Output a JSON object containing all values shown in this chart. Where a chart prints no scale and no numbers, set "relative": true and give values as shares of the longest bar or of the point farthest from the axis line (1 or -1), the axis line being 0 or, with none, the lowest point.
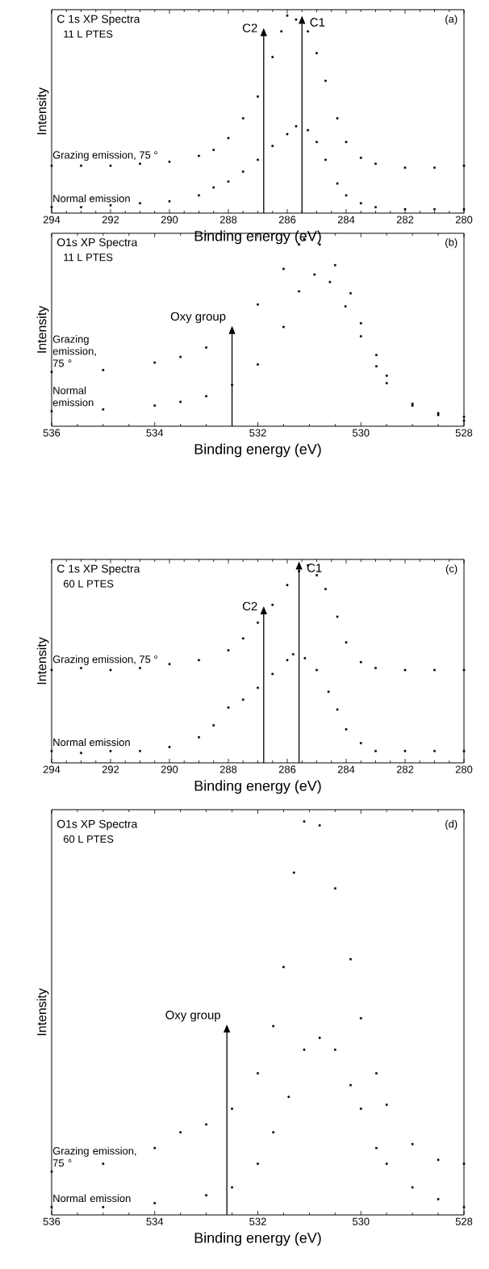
{
  "chart_data": [
    {
      "type": "scatter",
      "title": "C 1s XP Spectra",
      "subtitle": "11 L PTES",
      "xlabel": "Binding energy (eV)",
      "ylabel": "Intensity",
      "annotations": [
        "(a)"
      ],
      "relative": true,
      "marker": "square",
      "xlim": [
        294,
        280
      ],
      "xticks": [
        294,
        292,
        290,
        288,
        286,
        284,
        282,
        280
      ],
      "ref_lines": [
        {
          "axis": "x",
          "value": 286.8,
          "label": "C2"
        },
        {
          "axis": "x",
          "value": 285.5,
          "label": "C1"
        }
      ],
      "series": [
        {
          "name": "Grazing emission, 75 °",
          "color": "#000000",
          "x": [
            294,
            293,
            292,
            291,
            290,
            289,
            288.5,
            288,
            287.5,
            287,
            286.5,
            286.2,
            286,
            285.7,
            285.3,
            285,
            284.7,
            284.3,
            284,
            283.5,
            283,
            282,
            281,
            280
          ],
          "values": [
            0.24,
            0.24,
            0.24,
            0.25,
            0.26,
            0.29,
            0.32,
            0.38,
            0.48,
            0.59,
            0.79,
            0.92,
            1.0,
            0.98,
            0.92,
            0.81,
            0.67,
            0.48,
            0.36,
            0.28,
            0.25,
            0.23,
            0.23,
            0.24
          ]
        },
        {
          "name": "Normal emission",
          "color": "#000000",
          "x": [
            294,
            293,
            292,
            291,
            290,
            289,
            288.5,
            288,
            287.5,
            287,
            286.5,
            286,
            285.7,
            285.3,
            285,
            284.7,
            284.3,
            284,
            283.5,
            283,
            282,
            281,
            280
          ],
          "values": [
            0.03,
            0.03,
            0.04,
            0.05,
            0.06,
            0.09,
            0.13,
            0.16,
            0.21,
            0.27,
            0.34,
            0.4,
            0.44,
            0.42,
            0.36,
            0.27,
            0.15,
            0.09,
            0.05,
            0.03,
            0.02,
            0.02,
            0.02
          ]
        }
      ]
    },
    {
      "type": "scatter",
      "title": "O1s XP Spectra",
      "subtitle": "11 L PTES",
      "xlabel": "Binding energy (eV)",
      "ylabel": "Intensity",
      "annotations": [
        "(b)"
      ],
      "relative": true,
      "marker": "square",
      "xlim": [
        536,
        528
      ],
      "xticks": [
        536,
        534,
        532,
        530,
        528
      ],
      "ref_lines": [
        {
          "axis": "x",
          "value": 532.5,
          "label": "Oxy group"
        }
      ],
      "series": [
        {
          "name": "Grazing emission, 75 °",
          "color": "#000000",
          "x": [
            536,
            535,
            534,
            533.5,
            533,
            532.5,
            532,
            531.5,
            531.2,
            531.1,
            530.8,
            530.5,
            530.2,
            530,
            529.7,
            529.5,
            529,
            528.5,
            528
          ],
          "values": [
            0.29,
            0.3,
            0.34,
            0.37,
            0.42,
            0.51,
            0.65,
            0.84,
            0.97,
            1.0,
            0.97,
            0.86,
            0.71,
            0.55,
            0.38,
            0.27,
            0.12,
            0.07,
            0.05
          ]
        },
        {
          "name": "Normal emission",
          "color": "#000000",
          "x": [
            536,
            535,
            534,
            533.5,
            533,
            532.5,
            532,
            531.5,
            531.2,
            530.9,
            530.6,
            530.3,
            530,
            529.7,
            529.5,
            529,
            528.5,
            528
          ],
          "values": [
            0.08,
            0.09,
            0.11,
            0.13,
            0.16,
            0.22,
            0.33,
            0.53,
            0.72,
            0.81,
            0.77,
            0.64,
            0.48,
            0.32,
            0.23,
            0.11,
            0.06,
            0.03
          ]
        }
      ]
    },
    {
      "type": "scatter",
      "title": "C 1s XP Spectra",
      "subtitle": "60 L PTES",
      "xlabel": "Binding energy (eV)",
      "ylabel": "Intensity",
      "annotations": [
        "(c)"
      ],
      "relative": true,
      "marker": "square",
      "xlim": [
        294,
        280
      ],
      "xticks": [
        294,
        292,
        290,
        288,
        286,
        284,
        282,
        280
      ],
      "ref_lines": [
        {
          "axis": "x",
          "value": 286.8,
          "label": "C2"
        },
        {
          "axis": "x",
          "value": 285.6,
          "label": "C1"
        }
      ],
      "series": [
        {
          "name": "Grazing emission, 75 °",
          "color": "#000000",
          "x": [
            294,
            293,
            292,
            291,
            290,
            289,
            288,
            287.5,
            287,
            286.5,
            286,
            285.6,
            285.3,
            285,
            284.7,
            284.3,
            284,
            283.5,
            283,
            282,
            281,
            280
          ],
          "values": [
            0.47,
            0.48,
            0.47,
            0.48,
            0.5,
            0.52,
            0.57,
            0.63,
            0.71,
            0.8,
            0.9,
            0.97,
            1.0,
            0.95,
            0.88,
            0.74,
            0.61,
            0.51,
            0.48,
            0.47,
            0.47,
            0.47
          ]
        },
        {
          "name": "Normal emission",
          "color": "#000000",
          "x": [
            294,
            293,
            292,
            291,
            290,
            289,
            288.5,
            288,
            287.5,
            287,
            286.5,
            286,
            285.8,
            285.4,
            285,
            284.6,
            284.3,
            284,
            283.5,
            283,
            282,
            281,
            280
          ],
          "values": [
            0.06,
            0.05,
            0.06,
            0.06,
            0.08,
            0.13,
            0.19,
            0.28,
            0.32,
            0.38,
            0.45,
            0.52,
            0.55,
            0.53,
            0.47,
            0.36,
            0.27,
            0.17,
            0.1,
            0.06,
            0.06,
            0.06,
            0.06
          ]
        }
      ]
    },
    {
      "type": "scatter",
      "title": "O1s XP Spectra",
      "subtitle": "60 L PTES",
      "xlabel": "Binding energy (eV)",
      "ylabel": "Intensity",
      "annotations": [
        "(d)"
      ],
      "relative": true,
      "marker": "square",
      "xlim": [
        536,
        528
      ],
      "xticks": [
        536,
        534,
        532,
        530,
        528
      ],
      "ref_lines": [
        {
          "axis": "x",
          "value": 532.6,
          "label": "Oxy group"
        }
      ],
      "series": [
        {
          "name": "Grazing emission, 75 °",
          "color": "#000000",
          "x": [
            536,
            535,
            534,
            533.5,
            533,
            532.5,
            532,
            531.7,
            531.5,
            531.3,
            531.1,
            530.8,
            530.5,
            530.2,
            530,
            529.7,
            529.5,
            529,
            528.5,
            528
          ],
          "values": [
            0.11,
            0.13,
            0.17,
            0.21,
            0.23,
            0.27,
            0.36,
            0.48,
            0.63,
            0.87,
            1.0,
            0.99,
            0.83,
            0.65,
            0.5,
            0.36,
            0.28,
            0.18,
            0.14,
            0.13
          ]
        },
        {
          "name": "Normal emission",
          "color": "#000000",
          "x": [
            536,
            535,
            534,
            533,
            532.5,
            532,
            531.7,
            531.4,
            531.1,
            530.8,
            530.5,
            530.2,
            530,
            529.7,
            529.5,
            529,
            528.5,
            528
          ],
          "values": [
            0.02,
            0.02,
            0.03,
            0.05,
            0.07,
            0.13,
            0.21,
            0.3,
            0.42,
            0.45,
            0.42,
            0.33,
            0.27,
            0.17,
            0.13,
            0.07,
            0.04,
            0.02
          ]
        }
      ]
    }
  ]
}
